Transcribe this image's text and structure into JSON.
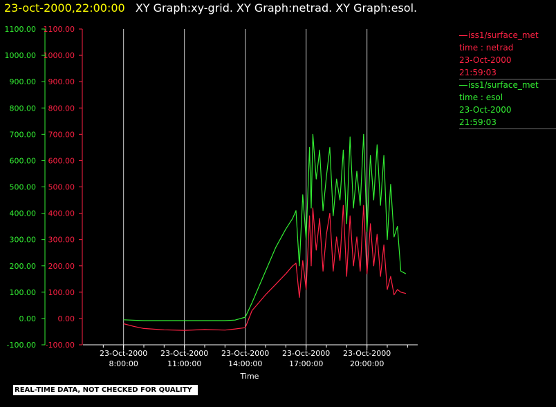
{
  "header": {
    "date": "23-oct-2000,22:00:00",
    "titles": "XY Graph:xy-grid.  XY Graph:netrad.  XY Graph:esol."
  },
  "legend": {
    "netrad": [
      "iss1/surface_met",
      "time : netrad",
      "23-Oct-2000",
      "21:59:03"
    ],
    "esol": [
      "iss1/surface_met",
      "time : esol",
      "23-Oct-2000",
      "21:59:03"
    ]
  },
  "footer": "REAL-TIME DATA, NOT CHECKED FOR QUALITY",
  "colors": {
    "netrad": "#ff2244",
    "esol": "#33ee33",
    "grid": "#cccccc",
    "axis": "#ffffff",
    "header_date": "#ffff00"
  },
  "chart_data": {
    "type": "line",
    "title": "",
    "xlabel": "Time",
    "ylabel": "",
    "ylim": [
      -100,
      1100
    ],
    "y_ticks": [
      -100,
      0,
      100,
      200,
      300,
      400,
      500,
      600,
      700,
      800,
      900,
      1000,
      1100
    ],
    "y_tick_labels": [
      "-100.00",
      "0.00",
      "100.00",
      "200.00",
      "300.00",
      "400.00",
      "500.00",
      "600.00",
      "700.00",
      "800.00",
      "900.00",
      "1000.00",
      "1100.00"
    ],
    "xlim": [
      "23-Oct-2000 06:00",
      "23-Oct-2000 22:30"
    ],
    "x_ticks": [
      "23-Oct-2000 08:00",
      "23-Oct-2000 11:00",
      "23-Oct-2000 14:00",
      "23-Oct-2000 17:00",
      "23-Oct-2000 20:00"
    ],
    "x_tick_labels": [
      [
        "23-Oct-2000",
        "8:00:00"
      ],
      [
        "23-Oct-2000",
        "11:00:00"
      ],
      [
        "23-Oct-2000",
        "14:00:00"
      ],
      [
        "23-Oct-2000",
        "17:00:00"
      ],
      [
        "23-Oct-2000",
        "20:00:00"
      ]
    ],
    "grid": "vertical",
    "series": [
      {
        "name": "esol",
        "x": [
          "08:00",
          "09:00",
          "10:00",
          "11:00",
          "12:00",
          "13:00",
          "13:30",
          "14:00",
          "14:20",
          "14:30",
          "15:00",
          "15:30",
          "16:00",
          "16:20",
          "16:30",
          "16:40",
          "16:50",
          "17:00",
          "17:10",
          "17:15",
          "17:20",
          "17:30",
          "17:40",
          "17:50",
          "18:00",
          "18:10",
          "18:20",
          "18:30",
          "18:40",
          "18:50",
          "19:00",
          "19:10",
          "19:20",
          "19:30",
          "19:40",
          "19:50",
          "20:00",
          "20:10",
          "20:20",
          "20:30",
          "20:40",
          "20:50",
          "21:00",
          "21:10",
          "21:20",
          "21:30",
          "21:40",
          "21:55"
        ],
        "y": [
          -5,
          -8,
          -8,
          -8,
          -8,
          -8,
          -6,
          5,
          60,
          90,
          180,
          270,
          340,
          380,
          410,
          200,
          470,
          300,
          650,
          420,
          700,
          530,
          640,
          410,
          540,
          650,
          390,
          530,
          450,
          640,
          360,
          690,
          420,
          560,
          430,
          700,
          330,
          620,
          450,
          660,
          430,
          620,
          300,
          510,
          310,
          350,
          180,
          170
        ]
      },
      {
        "name": "netrad",
        "x": [
          "08:00",
          "08:30",
          "09:00",
          "10:00",
          "11:00",
          "12:00",
          "13:00",
          "13:30",
          "14:00",
          "14:20",
          "14:40",
          "15:00",
          "15:30",
          "16:00",
          "16:20",
          "16:30",
          "16:40",
          "16:50",
          "17:00",
          "17:10",
          "17:15",
          "17:20",
          "17:30",
          "17:40",
          "17:50",
          "18:00",
          "18:10",
          "18:20",
          "18:30",
          "18:40",
          "18:50",
          "19:00",
          "19:10",
          "19:20",
          "19:30",
          "19:40",
          "19:50",
          "20:00",
          "20:10",
          "20:20",
          "20:30",
          "20:40",
          "20:50",
          "21:00",
          "21:10",
          "21:20",
          "21:30",
          "21:40",
          "21:55"
        ],
        "y": [
          -20,
          -30,
          -38,
          -43,
          -45,
          -42,
          -44,
          -40,
          -35,
          30,
          60,
          90,
          130,
          170,
          200,
          210,
          80,
          220,
          110,
          390,
          200,
          420,
          260,
          380,
          180,
          320,
          400,
          180,
          310,
          220,
          430,
          160,
          390,
          200,
          310,
          180,
          430,
          170,
          360,
          200,
          320,
          160,
          280,
          110,
          160,
          90,
          110,
          100,
          95
        ]
      }
    ]
  }
}
